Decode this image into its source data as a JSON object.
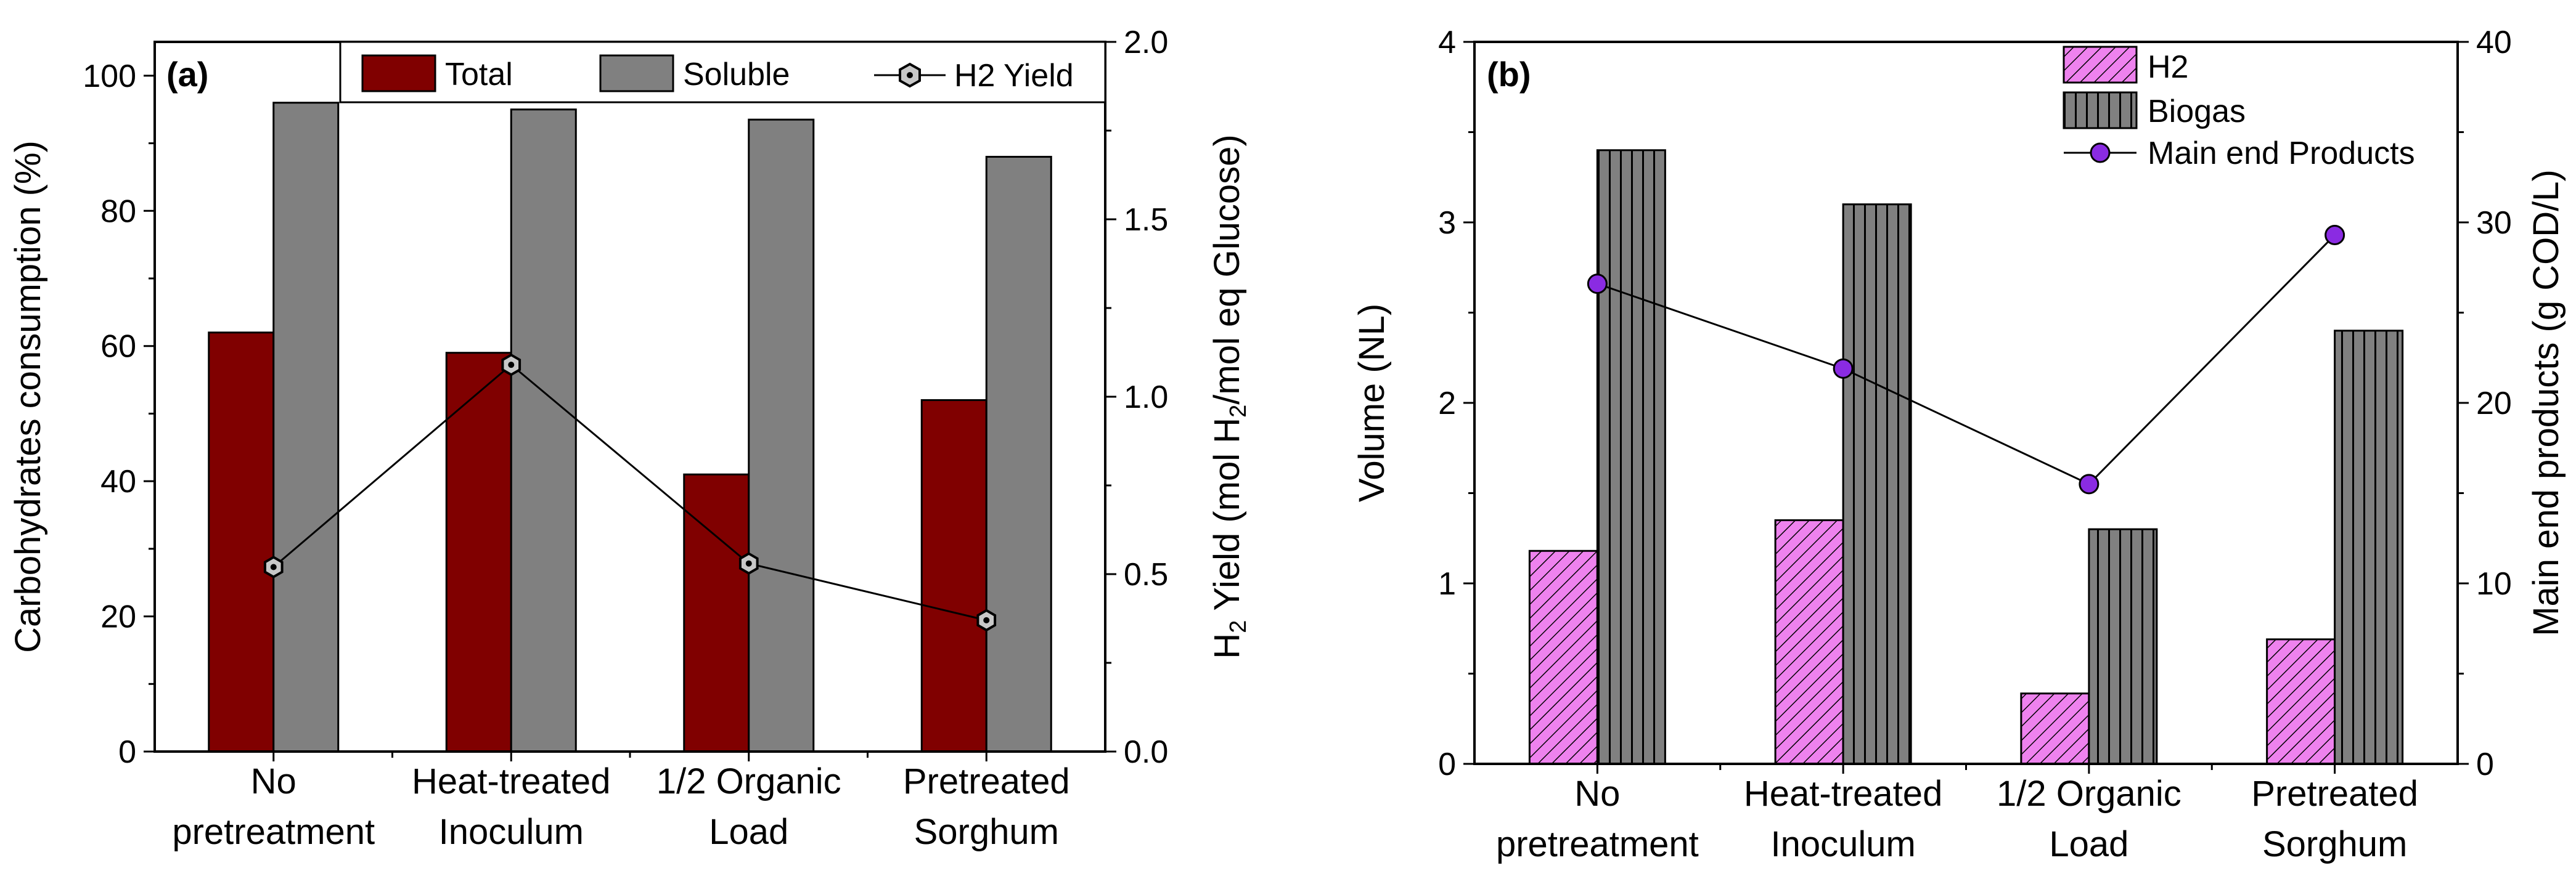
{
  "chart_data": [
    {
      "type": "bar",
      "panel_label": "(a)",
      "categories": [
        [
          "No",
          "pretreatment"
        ],
        [
          "Heat-treated",
          "Inoculum"
        ],
        [
          "1/2 Organic",
          "Load"
        ],
        [
          "Pretreated",
          "Sorghum"
        ]
      ],
      "ylabel": "Carbohydrates consumption (%)",
      "y2label_parts": [
        "H",
        "2",
        " Yield (mol H",
        "2",
        "/mol eq Glucose)"
      ],
      "ylim": [
        0,
        105
      ],
      "y2lim": [
        0,
        2.0
      ],
      "yticks": [
        "0",
        "20",
        "40",
        "60",
        "80",
        "100"
      ],
      "y2ticks": [
        "0.0",
        "0.5",
        "1.0",
        "1.5",
        "2.0"
      ],
      "series": [
        {
          "name": "Total",
          "values": [
            62,
            59,
            41,
            52
          ],
          "color": "#800000"
        },
        {
          "name": "Soluble",
          "values": [
            96,
            95,
            93.5,
            88
          ],
          "color": "#808080"
        }
      ],
      "line": {
        "name": "H2 Yield",
        "axis": "right",
        "values": [
          0.52,
          1.09,
          0.53,
          0.37
        ]
      },
      "legend": [
        "Total",
        "Soluble",
        "H2 Yield"
      ]
    },
    {
      "type": "bar",
      "panel_label": "(b)",
      "categories": [
        [
          "No",
          "pretreatment"
        ],
        [
          "Heat-treated",
          "Inoculum"
        ],
        [
          "1/2 Organic",
          "Load"
        ],
        [
          "Pretreated",
          "Sorghum"
        ]
      ],
      "ylabel": "Volume (NL)",
      "y2label": "Main end products (g COD/L)",
      "ylim": [
        0,
        4
      ],
      "y2lim": [
        0,
        40
      ],
      "yticks": [
        "0",
        "1",
        "2",
        "3",
        "4"
      ],
      "y2ticks": [
        "0",
        "10",
        "20",
        "30",
        "40"
      ],
      "series": [
        {
          "name": "H2",
          "values": [
            1.18,
            1.35,
            0.39,
            0.69
          ],
          "color": "#ee82ee"
        },
        {
          "name": "Biogas",
          "values": [
            3.4,
            3.1,
            1.3,
            2.4
          ],
          "color": "#808080"
        }
      ],
      "line": {
        "name": "Main end Products",
        "axis": "right",
        "values": [
          26.6,
          21.9,
          15.5,
          29.3
        ],
        "color": "#8a2be2"
      },
      "legend": [
        "H2",
        "Biogas",
        "Main end Products"
      ]
    }
  ]
}
